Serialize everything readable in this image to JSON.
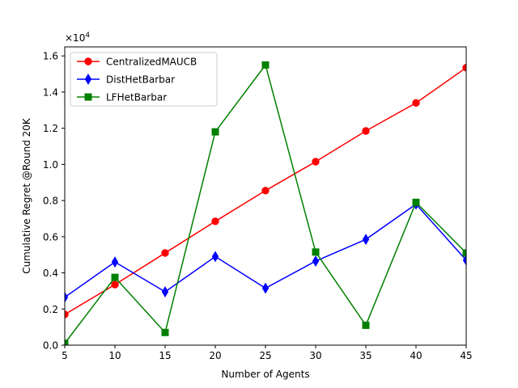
{
  "chart_data": {
    "type": "line",
    "title": "",
    "xlabel": "Number of Agents",
    "ylabel": "Cumulative Regret @Round 20K",
    "scale_label": "×10",
    "scale_exponent": "4",
    "x": [
      5,
      10,
      15,
      20,
      25,
      30,
      35,
      40,
      45
    ],
    "xlim": [
      5,
      45
    ],
    "ylim": [
      0,
      1.65
    ],
    "xticks": [
      "5",
      "10",
      "15",
      "20",
      "25",
      "30",
      "35",
      "40",
      "45"
    ],
    "yticks": [
      "0.0",
      "0.2",
      "0.4",
      "0.6",
      "0.8",
      "1.0",
      "1.2",
      "1.4",
      "1.6"
    ],
    "grid": false,
    "legend_position": "top-left",
    "series": [
      {
        "name": "CentralizedMAUCB",
        "color": "#ff0000",
        "marker": "circle",
        "values": [
          0.17,
          0.335,
          0.51,
          0.685,
          0.855,
          1.015,
          1.185,
          1.34,
          1.535
        ]
      },
      {
        "name": "DistHetBarbar",
        "color": "#0000ff",
        "marker": "diamond",
        "values": [
          0.265,
          0.46,
          0.295,
          0.49,
          0.315,
          0.465,
          0.585,
          0.78,
          0.47
        ]
      },
      {
        "name": "LFHetBarbar",
        "color": "#008000",
        "marker": "square",
        "values": [
          0.01,
          0.375,
          0.07,
          1.18,
          1.55,
          0.515,
          0.11,
          0.79,
          0.51
        ]
      }
    ]
  }
}
